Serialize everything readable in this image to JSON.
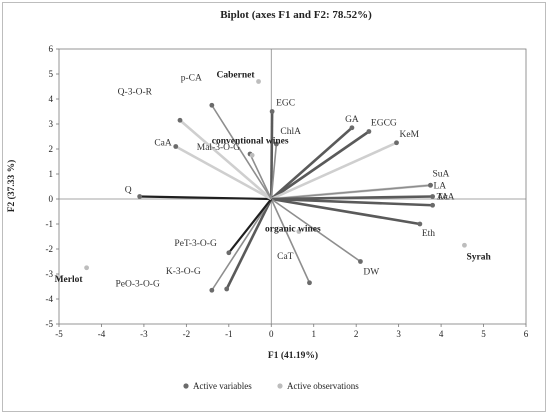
{
  "chart_data": {
    "type": "scatter",
    "title": "Biplot (axes F1 and F2: 78.52%)",
    "xlabel": "F1 (41.19%)",
    "ylabel": "F2 (37.33 %)",
    "xlim": [
      -5,
      6
    ],
    "ylim": [
      -5,
      6
    ],
    "xticks": [
      -5,
      -4,
      -3,
      -2,
      -1,
      0,
      1,
      2,
      3,
      4,
      5,
      6
    ],
    "yticks": [
      -5,
      -4,
      -3,
      -2,
      -1,
      0,
      1,
      2,
      3,
      4,
      5,
      6
    ],
    "grid": false,
    "legend_position": "bottom",
    "series": [
      {
        "name": "Active variables",
        "color": "#6b6b6b",
        "points": [
          {
            "label": "EGC",
            "x": 0.02,
            "y": 3.5,
            "shade": "dark"
          },
          {
            "label": "ChlA",
            "x": 0.12,
            "y": 2.2,
            "shade": "gray"
          },
          {
            "label": "GA",
            "x": 1.9,
            "y": 2.85,
            "shade": "dark"
          },
          {
            "label": "EGCG",
            "x": 2.3,
            "y": 2.7,
            "shade": "dark"
          },
          {
            "label": "KeM",
            "x": 2.95,
            "y": 2.25,
            "shade": "light"
          },
          {
            "label": "SuA",
            "x": 3.75,
            "y": 0.55,
            "shade": "light"
          },
          {
            "label": "LA",
            "x": 3.8,
            "y": 0.1,
            "shade": "gray"
          },
          {
            "label": "AcA",
            "x": 3.8,
            "y": -0.25,
            "shade": "dark"
          },
          {
            "label": "TA",
            "x": 3.5,
            "y": -1.0,
            "shade": "dark"
          },
          {
            "label": "Eth",
            "x": 2.1,
            "y": -2.5,
            "shade": "dark"
          },
          {
            "label": "DW",
            "x": 0.9,
            "y": -3.4,
            "shade": "gray"
          },
          {
            "label": "CaT",
            "x": -1.0,
            "y": -3.65,
            "shade": "gray"
          },
          {
            "label": "K-3-O-G",
            "x": -1.4,
            "y": -3.65,
            "shade": "dark"
          },
          {
            "label": "PeO-3-O-G",
            "x": -1.05,
            "y": -2.15,
            "shade": "gray"
          },
          {
            "label": "PeT-3-O-G",
            "x": -3.1,
            "y": 0.1,
            "shade": "black"
          },
          {
            "label": "Q",
            "x": -2.25,
            "y": 2.1,
            "shade": "black"
          },
          {
            "label": "CaA",
            "x": -2.15,
            "y": 3.15,
            "shade": "light"
          },
          {
            "label": "Q-3-O-R",
            "x": -1.4,
            "y": 3.75,
            "shade": "light"
          },
          {
            "label": "p-CA",
            "x": -0.5,
            "y": 1.8,
            "shade": "gray"
          },
          {
            "label": "Mal-3-O-G",
            "x": -0.5,
            "y": 1.8,
            "shade": "gray"
          }
        ]
      },
      {
        "name": "Active observations",
        "color": "#bdbdbd",
        "points": [
          {
            "label": "Cabernet",
            "x": -0.3,
            "y": 4.7
          },
          {
            "label": "conventional wines",
            "x": -0.45,
            "y": 1.75
          },
          {
            "label": "organic wines",
            "x": 0.65,
            "y": -1.3
          },
          {
            "label": "Syrah",
            "x": 4.55,
            "y": -1.85
          },
          {
            "label": "Merlot",
            "x": -4.35,
            "y": -2.75
          }
        ]
      }
    ]
  }
}
